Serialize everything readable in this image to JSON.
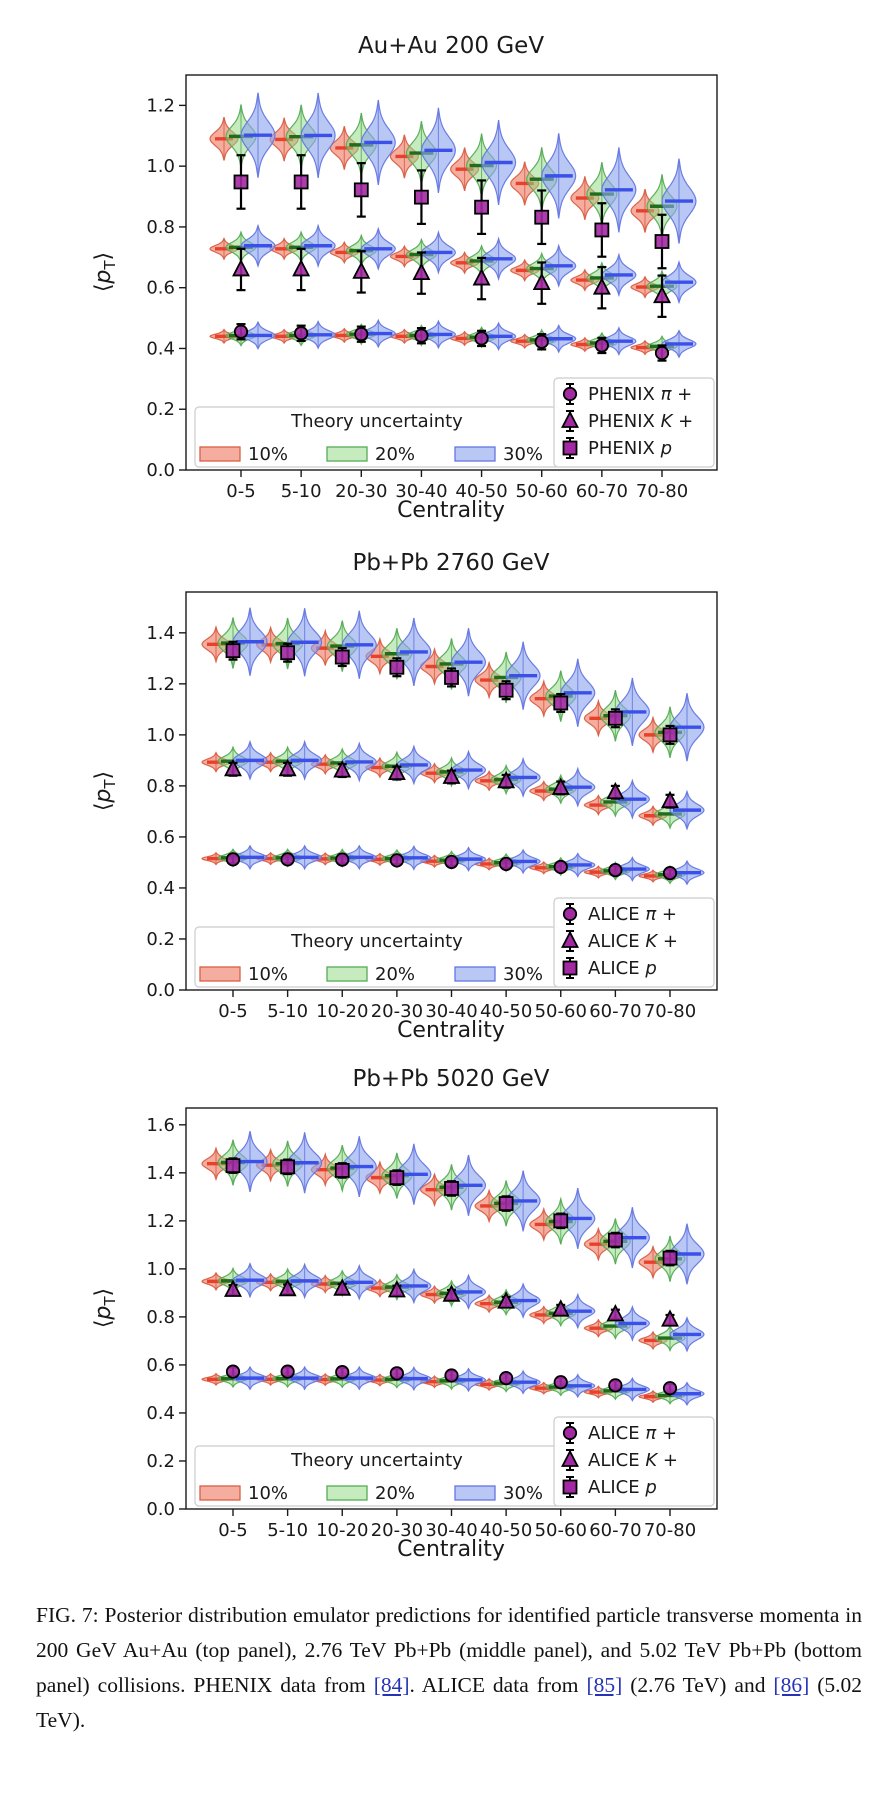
{
  "colors": {
    "violin_10_fill": "#ee7a62",
    "violin_10_stroke": "#d95f45",
    "violin_10_median": "#e8402a",
    "violin_20_fill": "#8fd884",
    "violin_20_stroke": "#55ab55",
    "violin_20_median": "#1e6e1e",
    "violin_30_fill": "#8ea4ee",
    "violin_30_stroke": "#6577e2",
    "violin_30_median": "#3a50e8",
    "marker_fill": "#a229a2",
    "marker_edge": "#000000",
    "errorbar": "#000000",
    "link": "#2633b8"
  },
  "chart_data": [
    {
      "type": "violin",
      "title": "Au+Au 200 GeV",
      "xlabel": "Centrality",
      "ylabel_parts": {
        "open": "⟨",
        "sym": "p",
        "sub": "T",
        "close": "⟩"
      },
      "categories": [
        "0-5",
        "5-10",
        "20-30",
        "30-40",
        "40-50",
        "50-60",
        "60-70",
        "70-80"
      ],
      "ylim": [
        0,
        1.3
      ],
      "yticks": [
        "0.0",
        "0.2",
        "0.4",
        "0.6",
        "0.8",
        "1.0",
        "1.2"
      ],
      "legend": {
        "title": "Theory uncertainty"
      },
      "theory_uncertainty_series": [
        "10%",
        "20%",
        "30%"
      ],
      "species": [
        {
          "name": "proton",
          "spread": 0.105,
          "means": {
            "10%": [
              1.09,
              1.088,
              1.06,
              1.032,
              0.99,
              0.943,
              0.895,
              0.853
            ],
            "20%": [
              1.098,
              1.097,
              1.07,
              1.043,
              1.002,
              0.957,
              0.908,
              0.868
            ],
            "30%": [
              1.102,
              1.101,
              1.078,
              1.052,
              1.012,
              0.968,
              0.922,
              0.885
            ]
          }
        },
        {
          "name": "kaon",
          "spread": 0.05,
          "means": {
            "10%": [
              0.728,
              0.728,
              0.716,
              0.703,
              0.682,
              0.657,
              0.625,
              0.602
            ],
            "20%": [
              0.733,
              0.733,
              0.722,
              0.709,
              0.688,
              0.663,
              0.632,
              0.605
            ],
            "30%": [
              0.738,
              0.738,
              0.728,
              0.716,
              0.695,
              0.672,
              0.642,
              0.618
            ]
          }
        },
        {
          "name": "pion",
          "spread": 0.033,
          "means": {
            "10%": [
              0.44,
              0.44,
              0.443,
              0.44,
              0.433,
              0.424,
              0.413,
              0.403
            ],
            "20%": [
              0.442,
              0.443,
              0.447,
              0.443,
              0.437,
              0.428,
              0.418,
              0.407
            ],
            "30%": [
              0.443,
              0.445,
              0.449,
              0.446,
              0.44,
              0.432,
              0.424,
              0.415
            ]
          }
        }
      ],
      "data_points": [
        {
          "label_pre": "PHENIX ",
          "symbol": "π",
          "label_post": " +",
          "marker": "circle",
          "values": [
            0.455,
            0.45,
            0.447,
            0.442,
            0.433,
            0.422,
            0.41,
            0.385
          ],
          "err": 0.025
        },
        {
          "label_pre": "PHENIX ",
          "symbol": "K",
          "label_post": " +",
          "marker": "triangle",
          "values": [
            0.66,
            0.66,
            0.652,
            0.648,
            0.63,
            0.615,
            0.6,
            0.572
          ],
          "err": 0.068
        },
        {
          "label_pre": "PHENIX ",
          "symbol": "p",
          "label_post": "",
          "marker": "square",
          "values": [
            0.948,
            0.948,
            0.922,
            0.898,
            0.865,
            0.832,
            0.79,
            0.752
          ],
          "err": 0.088
        }
      ]
    },
    {
      "type": "violin",
      "title": "Pb+Pb 2760 GeV",
      "xlabel": "Centrality",
      "ylabel_parts": {
        "open": "⟨",
        "sym": "p",
        "sub": "T",
        "close": "⟩"
      },
      "categories": [
        "0-5",
        "5-10",
        "10-20",
        "20-30",
        "30-40",
        "40-50",
        "50-60",
        "60-70",
        "70-80"
      ],
      "ylim": [
        0,
        1.56
      ],
      "yticks": [
        "0.0",
        "0.2",
        "0.4",
        "0.6",
        "0.8",
        "1.0",
        "1.2",
        "1.4"
      ],
      "legend": {
        "title": "Theory uncertainty"
      },
      "theory_uncertainty_series": [
        "10%",
        "20%",
        "30%"
      ],
      "species": [
        {
          "name": "proton",
          "spread": 0.1,
          "means": {
            "10%": [
              1.355,
              1.353,
              1.34,
              1.308,
              1.268,
              1.215,
              1.142,
              1.065,
              1.0
            ],
            "20%": [
              1.36,
              1.358,
              1.348,
              1.318,
              1.278,
              1.225,
              1.152,
              1.075,
              1.01
            ],
            "30%": [
              1.365,
              1.363,
              1.353,
              1.325,
              1.285,
              1.232,
              1.165,
              1.09,
              1.03
            ]
          }
        },
        {
          "name": "kaon",
          "spread": 0.055,
          "means": {
            "10%": [
              0.893,
              0.893,
              0.885,
              0.872,
              0.85,
              0.82,
              0.78,
              0.725,
              0.683
            ],
            "20%": [
              0.897,
              0.897,
              0.89,
              0.877,
              0.855,
              0.825,
              0.787,
              0.737,
              0.69
            ],
            "30%": [
              0.9,
              0.9,
              0.894,
              0.882,
              0.862,
              0.833,
              0.795,
              0.748,
              0.705
            ]
          }
        },
        {
          "name": "pion",
          "spread": 0.034,
          "means": {
            "10%": [
              0.515,
              0.515,
              0.514,
              0.512,
              0.505,
              0.494,
              0.479,
              0.462,
              0.447
            ],
            "20%": [
              0.518,
              0.518,
              0.517,
              0.515,
              0.509,
              0.499,
              0.484,
              0.467,
              0.452
            ],
            "30%": [
              0.52,
              0.52,
              0.52,
              0.518,
              0.513,
              0.504,
              0.49,
              0.474,
              0.46
            ]
          }
        }
      ],
      "data_points": [
        {
          "label_pre": "ALICE ",
          "symbol": "π",
          "label_post": " +",
          "marker": "circle",
          "values": [
            0.512,
            0.512,
            0.511,
            0.508,
            0.502,
            0.494,
            0.482,
            0.47,
            0.458
          ],
          "err": 0.015
        },
        {
          "label_pre": "ALICE ",
          "symbol": "K",
          "label_post": " +",
          "marker": "triangle",
          "values": [
            0.865,
            0.865,
            0.86,
            0.85,
            0.835,
            0.818,
            0.792,
            0.775,
            0.74
          ],
          "err": 0.025
        },
        {
          "label_pre": "ALICE ",
          "symbol": "p",
          "label_post": "",
          "marker": "square",
          "values": [
            1.33,
            1.322,
            1.305,
            1.265,
            1.225,
            1.175,
            1.125,
            1.065,
            1.0
          ],
          "err": 0.035
        }
      ]
    },
    {
      "type": "violin",
      "title": "Pb+Pb 5020 GeV",
      "xlabel": "Centrality",
      "ylabel_parts": {
        "open": "⟨",
        "sym": "p",
        "sub": "T",
        "close": "⟩"
      },
      "categories": [
        "0-5",
        "5-10",
        "10-20",
        "20-30",
        "30-40",
        "40-50",
        "50-60",
        "60-70",
        "70-80"
      ],
      "ylim": [
        0,
        1.67
      ],
      "yticks": [
        "0.0",
        "0.2",
        "0.4",
        "0.6",
        "0.8",
        "1.0",
        "1.2",
        "1.4",
        "1.6"
      ],
      "legend": {
        "title": "Theory uncertainty"
      },
      "theory_uncertainty_series": [
        "10%",
        "20%",
        "30%"
      ],
      "species": [
        {
          "name": "proton",
          "spread": 0.095,
          "means": {
            "10%": [
              1.438,
              1.432,
              1.413,
              1.38,
              1.33,
              1.262,
              1.185,
              1.103,
              1.028
            ],
            "20%": [
              1.443,
              1.438,
              1.42,
              1.388,
              1.34,
              1.273,
              1.197,
              1.115,
              1.042
            ],
            "30%": [
              1.447,
              1.442,
              1.426,
              1.394,
              1.348,
              1.283,
              1.21,
              1.13,
              1.062
            ]
          }
        },
        {
          "name": "kaon",
          "spread": 0.052,
          "means": {
            "10%": [
              0.948,
              0.944,
              0.937,
              0.92,
              0.893,
              0.855,
              0.808,
              0.753,
              0.702
            ],
            "20%": [
              0.95,
              0.948,
              0.94,
              0.924,
              0.898,
              0.861,
              0.815,
              0.762,
              0.712
            ],
            "30%": [
              0.953,
              0.95,
              0.944,
              0.929,
              0.904,
              0.868,
              0.824,
              0.773,
              0.727
            ]
          }
        },
        {
          "name": "pion",
          "spread": 0.035,
          "means": {
            "10%": [
              0.54,
              0.54,
              0.539,
              0.537,
              0.53,
              0.519,
              0.503,
              0.487,
              0.468
            ],
            "20%": [
              0.543,
              0.543,
              0.542,
              0.54,
              0.534,
              0.524,
              0.508,
              0.492,
              0.473
            ],
            "30%": [
              0.545,
              0.545,
              0.545,
              0.543,
              0.538,
              0.528,
              0.513,
              0.498,
              0.48
            ]
          }
        }
      ],
      "data_points": [
        {
          "label_pre": "ALICE ",
          "symbol": "π",
          "label_post": " +",
          "marker": "circle",
          "values": [
            0.572,
            0.572,
            0.57,
            0.565,
            0.556,
            0.545,
            0.528,
            0.515,
            0.503
          ],
          "err": 0.018
        },
        {
          "label_pre": "ALICE ",
          "symbol": "K",
          "label_post": " +",
          "marker": "triangle",
          "values": [
            0.912,
            0.915,
            0.917,
            0.91,
            0.892,
            0.863,
            0.83,
            0.81,
            0.788
          ],
          "err": 0.02
        },
        {
          "label_pre": "ALICE ",
          "symbol": "p",
          "label_post": "",
          "marker": "square",
          "values": [
            1.43,
            1.425,
            1.41,
            1.38,
            1.335,
            1.272,
            1.2,
            1.12,
            1.045
          ],
          "err": 0.03
        }
      ]
    }
  ],
  "caption": {
    "t1": "FIG. 7: Posterior distribution emulator predictions for identified particle transverse momenta in 200 GeV Au+Au (top panel), 2.76 TeV Pb+Pb (middle panel), and 5.02 TeV Pb+Pb (bottom panel) collisions. PHENIX data from ",
    "ref1": "[84]",
    "t2": ". ALICE data from ",
    "ref2": "[85]",
    "t3": " (2.76 TeV) and ",
    "ref3": "[86]",
    "t4": " (5.02 TeV)."
  }
}
